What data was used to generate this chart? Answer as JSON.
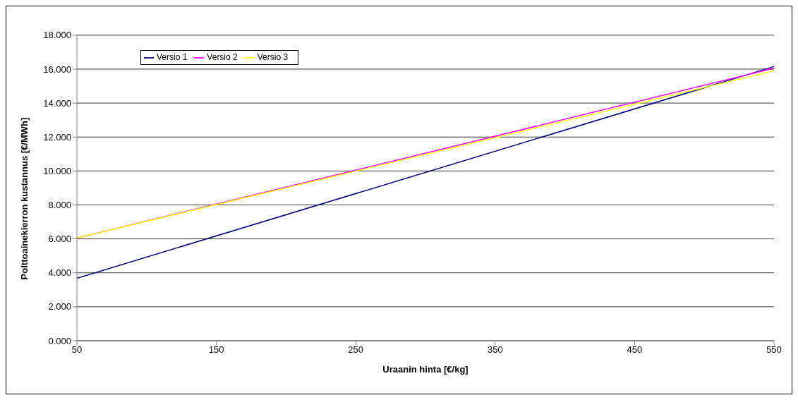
{
  "chart_data": {
    "type": "line",
    "xlabel": "Uraanin hinta [€/kg]",
    "ylabel": "Polttoainekierron kustannus [€/MWh]",
    "x": [
      50,
      550
    ],
    "xlim": [
      50,
      550
    ],
    "xticks": [
      50,
      150,
      250,
      350,
      450,
      550
    ],
    "ylim": [
      0,
      18
    ],
    "yticks": [
      {
        "value": 0,
        "label": "0.000"
      },
      {
        "value": 2,
        "label": "2.000"
      },
      {
        "value": 4,
        "label": "4.000"
      },
      {
        "value": 6,
        "label": "6.000"
      },
      {
        "value": 8,
        "label": "8.000"
      },
      {
        "value": 10,
        "label": "10.000"
      },
      {
        "value": 12,
        "label": "12.000"
      },
      {
        "value": 14,
        "label": "14.000"
      },
      {
        "value": 16,
        "label": "16.000"
      },
      {
        "value": 18,
        "label": "18.000"
      }
    ],
    "grid": "y",
    "legend": "top left",
    "marker": "none",
    "line_style": "solid",
    "series": [
      {
        "name": "Versio 1",
        "color": "#000080",
        "values": [
          3.68,
          16.15
        ]
      },
      {
        "name": "Versio 2",
        "color": "#ff00ff",
        "values": [
          6.05,
          16.05
        ]
      },
      {
        "name": "Versio 3",
        "color": "#ffff00",
        "values": [
          6.05,
          15.9
        ]
      }
    ]
  }
}
